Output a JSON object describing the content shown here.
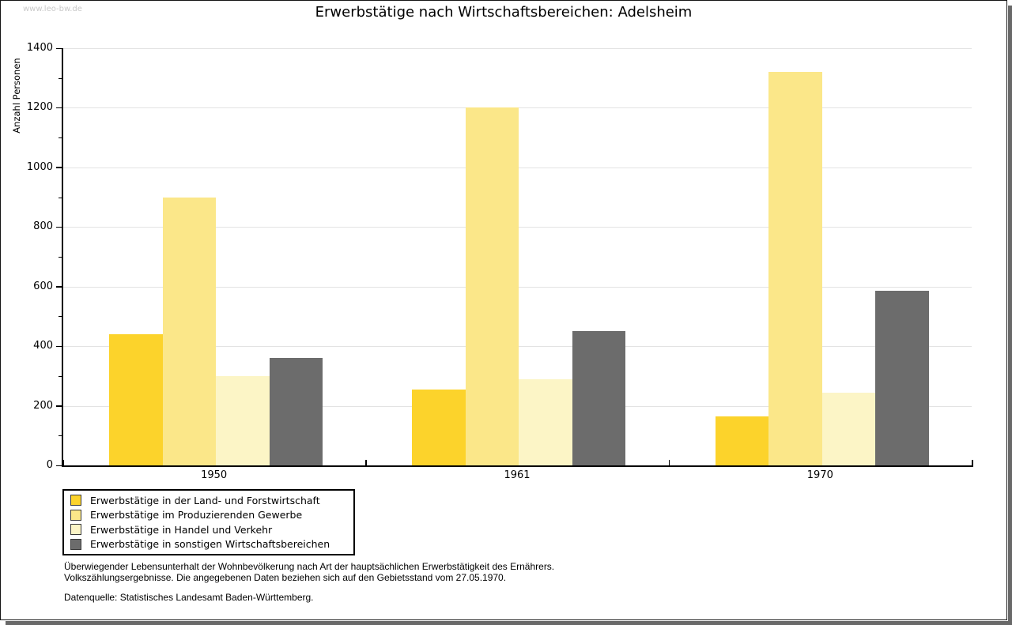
{
  "page": {
    "watermark": "www.leo-bw.de"
  },
  "chart_data": {
    "type": "bar",
    "title": "Erwerbstätige nach Wirtschaftsbereichen: Adelsheim",
    "xlabel": "",
    "ylabel": "Anzahl Personen",
    "categories": [
      "1950",
      "1961",
      "1970"
    ],
    "series": [
      {
        "name": "Erwerbstätige in der Land- und Forstwirtschaft",
        "color": "#fcd32b",
        "values": [
          440,
          255,
          165
        ]
      },
      {
        "name": "Erwerbstätige im Produzierenden Gewerbe",
        "color": "#fbe789",
        "values": [
          900,
          1200,
          1320
        ]
      },
      {
        "name": "Erwerbstätige in Handel und Verkehr",
        "color": "#fcf5c6",
        "values": [
          300,
          290,
          245
        ]
      },
      {
        "name": "Erwerbstätige in sonstigen Wirtschaftsbereichen",
        "color": "#6c6c6c",
        "values": [
          360,
          450,
          585
        ]
      }
    ],
    "ylim": [
      0,
      1400
    ],
    "ytick_step": 200,
    "yminor_step": 100,
    "grid": true,
    "legend_position": "bottom-left"
  },
  "footer": {
    "line1": "Überwiegender Lebensunterhalt der Wohnbevölkerung nach Art der hauptsächlichen Erwerbstätigkeit des Ernährers.",
    "line2": "Volkszählungsergebnisse. Die angegebenen Daten beziehen sich auf den Gebietsstand vom 27.05.1970.",
    "source": "Datenquelle: Statistisches Landesamt Baden-Württemberg."
  }
}
